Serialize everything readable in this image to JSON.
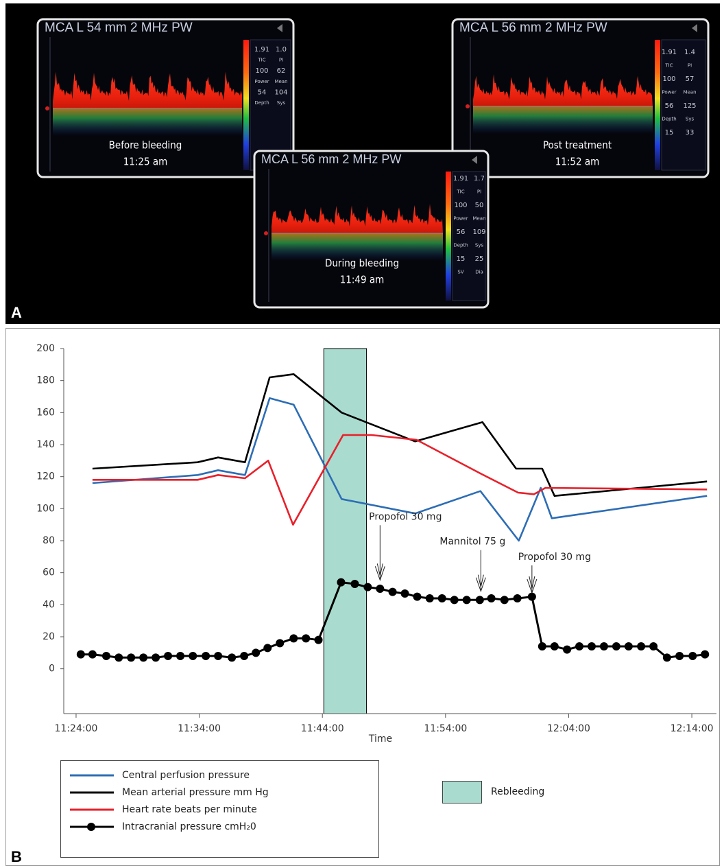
{
  "panel_a": {
    "label": "A",
    "screens": [
      {
        "title": "MCA L 54 mm 2 MHz PW",
        "caption": [
          "Before bleeding",
          "11:25 am"
        ],
        "readout": [
          [
            "1.91",
            "1.0"
          ],
          [
            "TIC",
            "PI"
          ],
          [
            "100",
            "62"
          ],
          [
            "Power",
            "Mean"
          ],
          [
            "54",
            "104"
          ],
          [
            "Depth",
            "Sys"
          ]
        ]
      },
      {
        "title": "MCA L 56 mm 2 MHz PW",
        "caption": [
          "Post treatment",
          "11:52 am"
        ],
        "readout": [
          [
            "1.91",
            "1.4"
          ],
          [
            "TIC",
            "PI"
          ],
          [
            "100",
            "57"
          ],
          [
            "Power",
            "Mean"
          ],
          [
            "56",
            "125"
          ],
          [
            "Depth",
            "Sys"
          ],
          [
            "15",
            "33"
          ]
        ]
      },
      {
        "title": "MCA L 56 mm 2 MHz PW",
        "caption": [
          "During bleeding",
          "11:49 am"
        ],
        "readout": [
          [
            "1.91",
            "1.7"
          ],
          [
            "TIC",
            "PI"
          ],
          [
            "100",
            "50"
          ],
          [
            "Power",
            "Mean"
          ],
          [
            "56",
            "109"
          ],
          [
            "Depth",
            "Sys"
          ],
          [
            "15",
            "25"
          ],
          [
            "SV",
            "Dia"
          ]
        ]
      }
    ]
  },
  "panel_b_label": "B",
  "chart_data": {
    "type": "line",
    "x_label": "Time",
    "xlim": [
      "11:23:00",
      "12:16:00"
    ],
    "xticks": [
      "11:24:00",
      "11:34:00",
      "11:44:00",
      "11:54:00",
      "12:04:00",
      "12:14:00"
    ],
    "ylim": [
      -28,
      200
    ],
    "yticks": [
      0,
      20,
      40,
      60,
      80,
      100,
      120,
      140,
      160,
      180,
      200
    ],
    "series": [
      {
        "name": "Central perfusion pressure",
        "color": "#2d6db5",
        "markers": false,
        "x": [
          "11:25:20",
          "11:33:52",
          "11:35:32",
          "11:37:43",
          "11:39:43",
          "11:41:40",
          "11:45:34",
          "11:51:32",
          "11:56:50",
          "11:59:57",
          "12:01:44",
          "12:02:38",
          "12:15:14"
        ],
        "values": [
          116,
          121,
          124,
          121,
          169,
          165,
          106,
          97,
          111,
          80,
          113,
          94,
          108
        ]
      },
      {
        "name": "Mean arterial pressure mm Hg",
        "color": "#000000",
        "markers": false,
        "x": [
          "11:25:20",
          "11:33:52",
          "11:35:32",
          "11:37:43",
          "11:39:43",
          "11:41:40",
          "11:45:34",
          "11:51:32",
          "11:57:00",
          "11:59:44",
          "12:01:51",
          "12:02:51",
          "12:15:14"
        ],
        "values": [
          125,
          129,
          132,
          129,
          182,
          184,
          160,
          142,
          154,
          125,
          125,
          108,
          117
        ]
      },
      {
        "name": "Heart rate beats per minute",
        "color": "#e8202a",
        "markers": false,
        "x": [
          "11:25:20",
          "11:33:52",
          "11:35:32",
          "11:37:43",
          "11:39:36",
          "11:41:37",
          "11:45:41",
          "11:48:00",
          "11:51:39",
          "11:56:50",
          "11:59:54",
          "12:01:11",
          "12:02:07",
          "12:15:14"
        ],
        "values": [
          118,
          118,
          121,
          119,
          130,
          90,
          146,
          146,
          143,
          122,
          110,
          109,
          113,
          112
        ]
      },
      {
        "name": "Intracranial pressure cmH₂0",
        "color": "#000000",
        "markers": true,
        "x": [
          "11:24:23",
          "11:25:20",
          "11:26:27",
          "11:27:28",
          "11:28:28",
          "11:29:28",
          "11:30:28",
          "11:31:28",
          "11:32:28",
          "11:33:29",
          "11:34:32",
          "11:35:32",
          "11:36:39",
          "11:37:39",
          "11:38:36",
          "11:39:33",
          "11:40:33",
          "11:41:40",
          "11:42:40",
          "11:43:41",
          "11:45:31",
          "11:46:38",
          "11:47:41",
          "11:48:41",
          "11:49:42",
          "11:50:42",
          "11:51:42",
          "11:52:43",
          "11:53:43",
          "11:54:43",
          "11:55:43",
          "11:56:47",
          "11:57:43",
          "11:58:47",
          "11:59:50",
          "12:01:01",
          "12:01:51",
          "12:02:51",
          "12:03:52",
          "12:04:52",
          "12:05:52",
          "12:06:52",
          "12:07:52",
          "12:08:52",
          "12:09:53",
          "12:10:53",
          "12:11:59",
          "12:13:00",
          "12:14:04",
          "12:15:04"
        ],
        "values": [
          9,
          9,
          8,
          7,
          7,
          7,
          7,
          8,
          8,
          8,
          8,
          8,
          7,
          8,
          10,
          13,
          16,
          19,
          19,
          18,
          54,
          53,
          51,
          50,
          48,
          47,
          45,
          44,
          44,
          43,
          43,
          43,
          44,
          43,
          44,
          45,
          14,
          14,
          12,
          14,
          14,
          14,
          14,
          14,
          14,
          14,
          7,
          8,
          8,
          9
        ]
      }
    ],
    "shaded_regions": [
      {
        "name": "Rebleeding",
        "x": [
          "11:44:07",
          "11:47:35"
        ],
        "color": "#a9dccf"
      }
    ],
    "annotations": [
      {
        "text": "Propofol 30 mg",
        "x": "11:48:41",
        "y": 52
      },
      {
        "text": "Mannitol 75 g",
        "x": "11:56:52",
        "y": 45
      },
      {
        "text": "Propofol 30 mg",
        "x": "12:01:01",
        "y": 44
      }
    ]
  }
}
